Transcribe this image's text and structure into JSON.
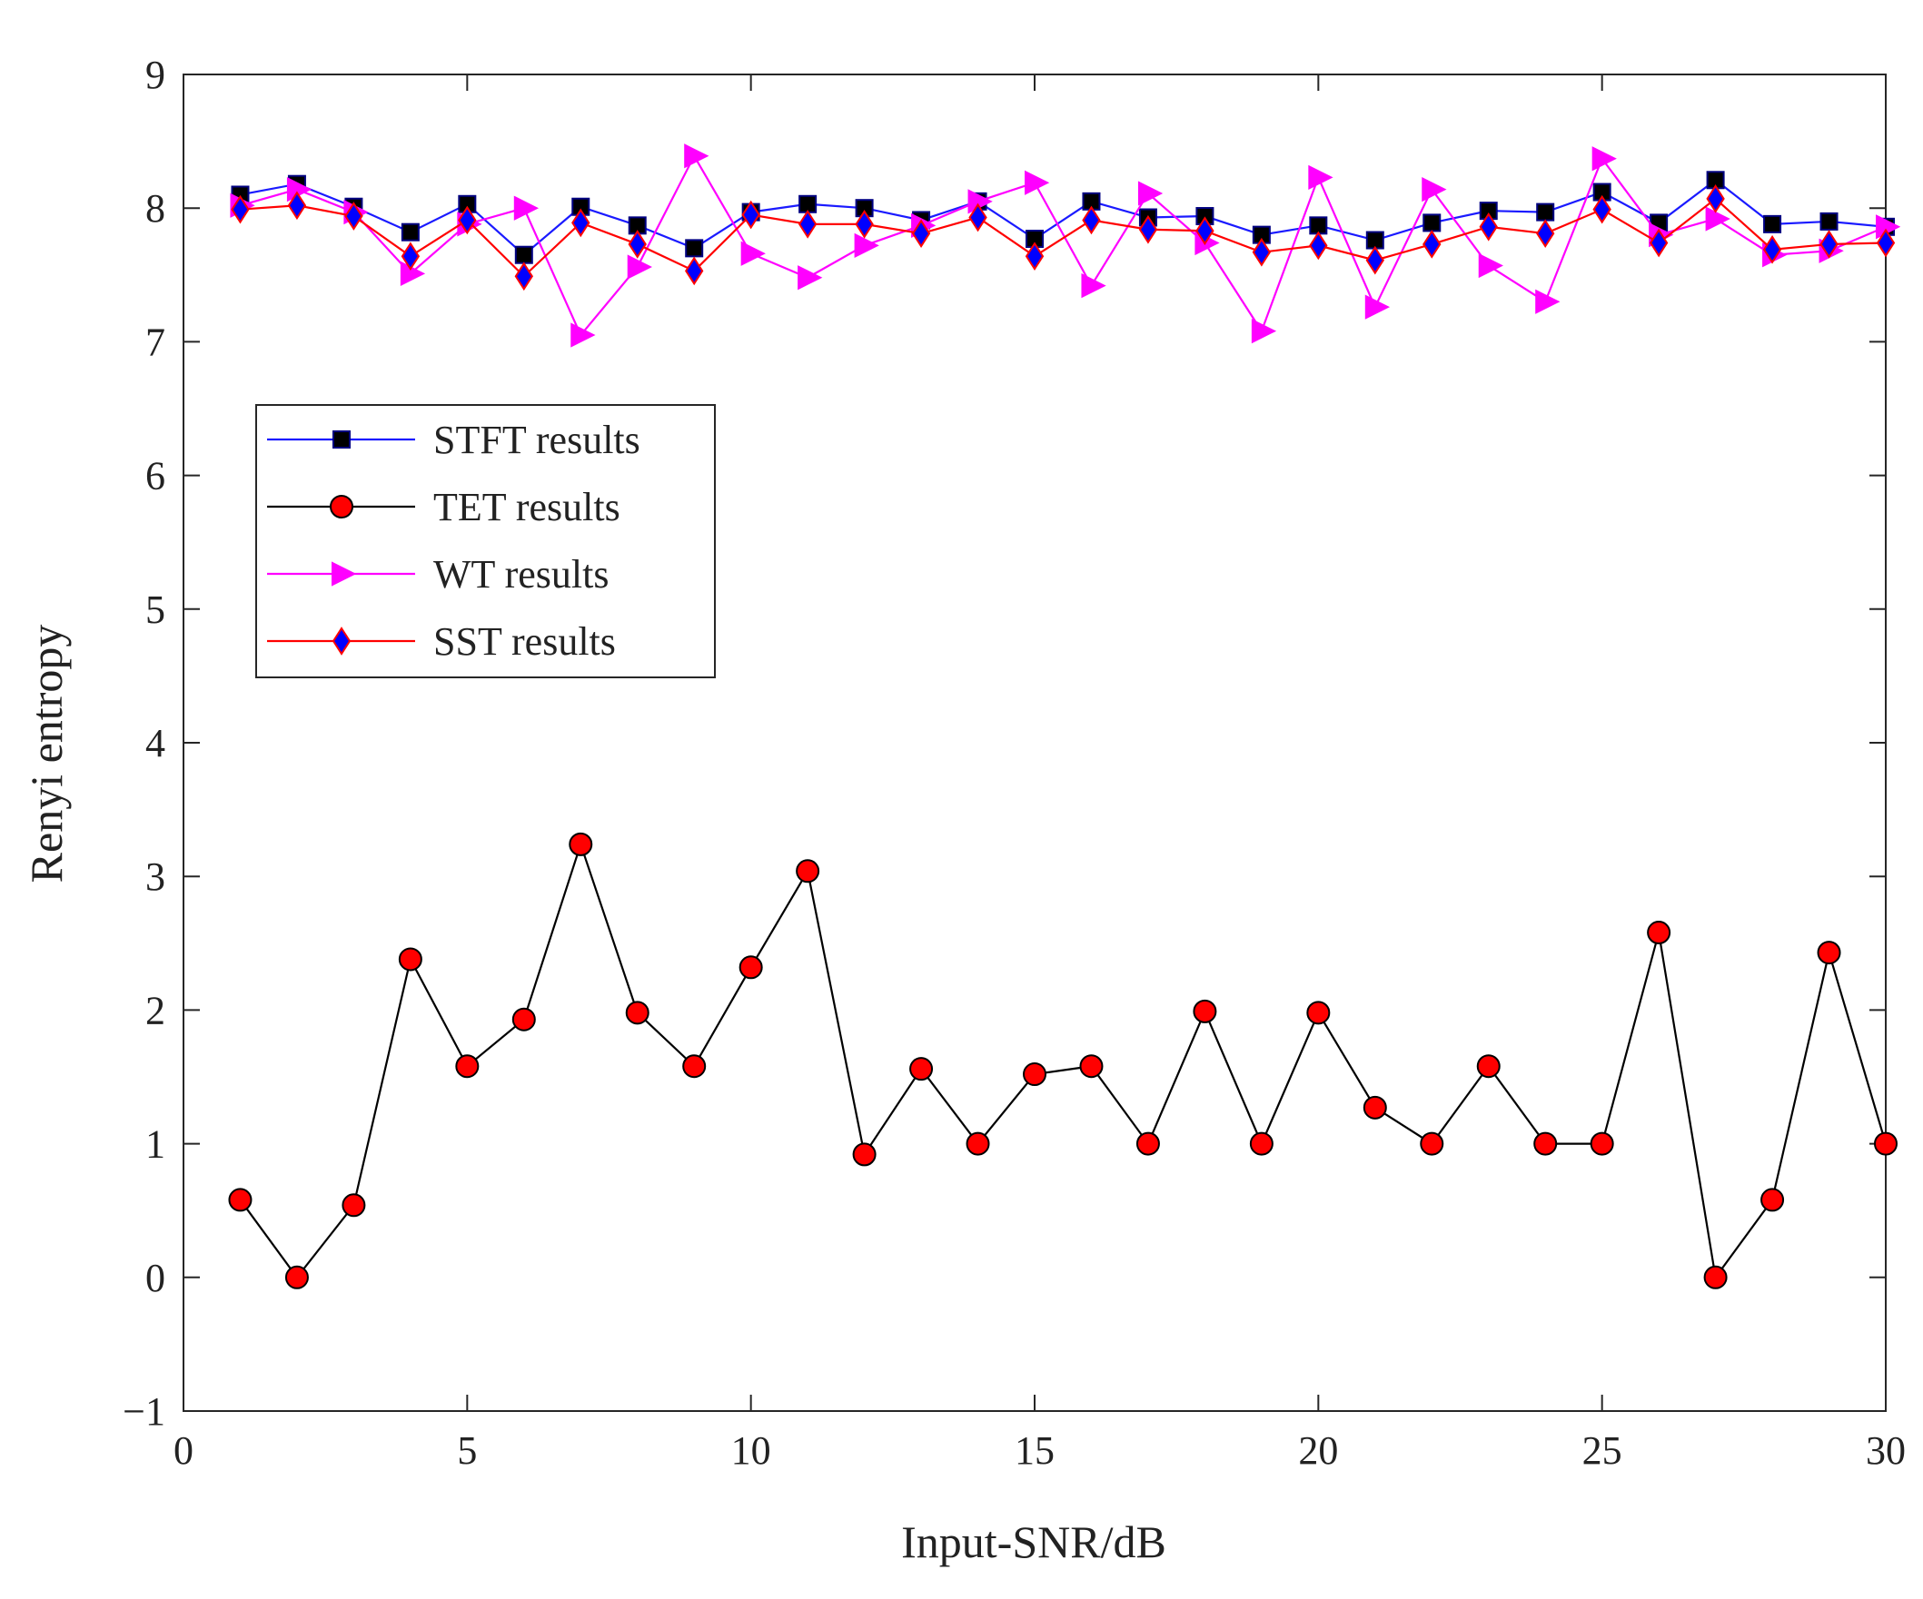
{
  "chart_data": {
    "type": "line",
    "title": "",
    "xlabel": "Input-SNR/dB",
    "ylabel": "Renyi entropy",
    "xlim": [
      0,
      30
    ],
    "ylim": [
      -1,
      9
    ],
    "xticks": [
      0,
      5,
      10,
      15,
      20,
      25,
      30
    ],
    "xtick_labels": [
      "0",
      "5",
      "10",
      "15",
      "20",
      "25",
      "30"
    ],
    "yticks": [
      -1,
      0,
      1,
      2,
      3,
      4,
      5,
      6,
      7,
      8,
      9
    ],
    "ytick_labels": [
      "−1",
      "0",
      "1",
      "2",
      "3",
      "4",
      "5",
      "6",
      "7",
      "8",
      "9"
    ],
    "grid": false,
    "legend_position": "upper-left",
    "x": [
      1,
      2,
      3,
      4,
      5,
      6,
      7,
      8,
      9,
      10,
      11,
      12,
      13,
      14,
      15,
      16,
      17,
      18,
      19,
      20,
      21,
      22,
      23,
      24,
      25,
      26,
      27,
      28,
      29,
      30
    ],
    "series": [
      {
        "name": "STFT results",
        "line_color": "#1a1aff",
        "marker": "square",
        "marker_fill": "#000000",
        "marker_edge": "#000080",
        "values": [
          8.1,
          8.18,
          8.01,
          7.82,
          8.03,
          7.65,
          8.01,
          7.87,
          7.7,
          7.97,
          8.03,
          8.0,
          7.91,
          8.05,
          7.77,
          8.05,
          7.93,
          7.94,
          7.8,
          7.87,
          7.76,
          7.89,
          7.98,
          7.97,
          8.12,
          7.89,
          8.21,
          7.88,
          7.9,
          7.86
        ]
      },
      {
        "name": "TET results",
        "line_color": "#000000",
        "marker": "circle",
        "marker_fill": "#ff0000",
        "marker_edge": "#000000",
        "values": [
          0.58,
          0.0,
          0.54,
          2.38,
          1.58,
          1.93,
          3.24,
          1.98,
          1.58,
          2.32,
          3.04,
          0.92,
          1.56,
          1.0,
          1.52,
          1.58,
          1.0,
          1.99,
          1.0,
          1.98,
          1.27,
          1.0,
          1.58,
          1.0,
          1.0,
          2.58,
          0.0,
          0.58,
          2.43,
          1.0
        ]
      },
      {
        "name": "WT results",
        "line_color": "#ff00ff",
        "marker": "triangle-right",
        "marker_fill": "#ff00ff",
        "marker_edge": "#ff00ff",
        "values": [
          8.02,
          8.14,
          7.97,
          7.51,
          7.88,
          8.0,
          7.05,
          7.56,
          8.39,
          7.66,
          7.48,
          7.72,
          7.87,
          8.05,
          8.19,
          7.42,
          8.11,
          7.74,
          7.08,
          8.23,
          7.26,
          8.14,
          7.57,
          7.3,
          8.37,
          7.8,
          7.92,
          7.65,
          7.68,
          7.86
        ]
      },
      {
        "name": "SST results",
        "line_color": "#ff0000",
        "marker": "diamond",
        "marker_fill": "#0000ff",
        "marker_edge": "#ff0000",
        "values": [
          7.99,
          8.02,
          7.94,
          7.64,
          7.91,
          7.49,
          7.89,
          7.73,
          7.53,
          7.95,
          7.88,
          7.88,
          7.81,
          7.93,
          7.64,
          7.91,
          7.84,
          7.83,
          7.67,
          7.72,
          7.61,
          7.73,
          7.86,
          7.81,
          7.99,
          7.74,
          8.07,
          7.69,
          7.73,
          7.74
        ]
      }
    ]
  }
}
